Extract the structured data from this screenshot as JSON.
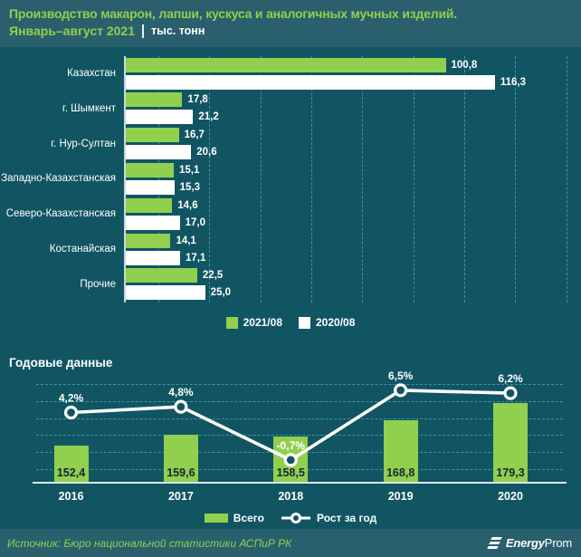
{
  "header": {
    "title": "Производство макарон, лапши, кускуса и аналогичных  мучных изделий.",
    "subtitle_period": "Январь–август 2021",
    "subtitle_units": "тыс. тонн"
  },
  "footer": {
    "source": "Источник: Бюро национальной статистики АСПиР РК",
    "logo_bold": "Energy",
    "logo_regular": "Prom"
  },
  "colors": {
    "background": "#115562",
    "band": "#2a5f6d",
    "accent_green": "#90d04e",
    "white": "#ffffff",
    "gridline": "#3f92a8",
    "dark_value_text": "#17253b"
  },
  "chart_data": [
    {
      "type": "bar",
      "orientation": "horizontal",
      "categories": [
        "Казахстан",
        "г. Шымкент",
        "г. Нур-Султан",
        "Западно-Казахстанская",
        "Северо-Казахстанская",
        "Костанайская",
        "Прочие"
      ],
      "series": [
        {
          "name": "2021/08",
          "color": "#90d04e",
          "values": [
            100.8,
            17.8,
            16.7,
            15.1,
            14.6,
            14.1,
            22.5
          ],
          "labels": [
            "100,8",
            "17,8",
            "16,7",
            "15,1",
            "14,6",
            "14,1",
            "22,5"
          ]
        },
        {
          "name": "2020/08",
          "color": "#ffffff",
          "values": [
            116.3,
            21.2,
            20.6,
            15.3,
            17.0,
            17.1,
            25.0
          ],
          "labels": [
            "116,3",
            "21,2",
            "20,6",
            "15,3",
            "17,0",
            "17,1",
            "25,0"
          ]
        }
      ],
      "xlim": [
        0,
        140
      ],
      "grid": "vertical-dashed",
      "legend_position": "bottom"
    },
    {
      "type": "bar+line",
      "title": "Годовые данные",
      "categories": [
        "2016",
        "2017",
        "2018",
        "2019",
        "2020"
      ],
      "bar_series": {
        "name": "Всего",
        "color": "#90d04e",
        "values": [
          152.4,
          159.6,
          158.5,
          168.8,
          179.3
        ],
        "labels": [
          "152,4",
          "159,6",
          "158,5",
          "168,8",
          "179,3"
        ]
      },
      "line_series": {
        "name": "Рост за год",
        "color": "#ffffff",
        "values": [
          4.2,
          4.8,
          -0.7,
          6.5,
          6.2
        ],
        "labels": [
          "4,2%",
          "4,8%",
          "-0,7%",
          "6,5%",
          "6,2%"
        ]
      },
      "bar_axis_min": 129.5,
      "bar_axis_max": 195,
      "line_axis_min": -2.95,
      "line_axis_max": 7.71,
      "grid": "horizontal-dashed",
      "legend_position": "bottom"
    }
  ]
}
